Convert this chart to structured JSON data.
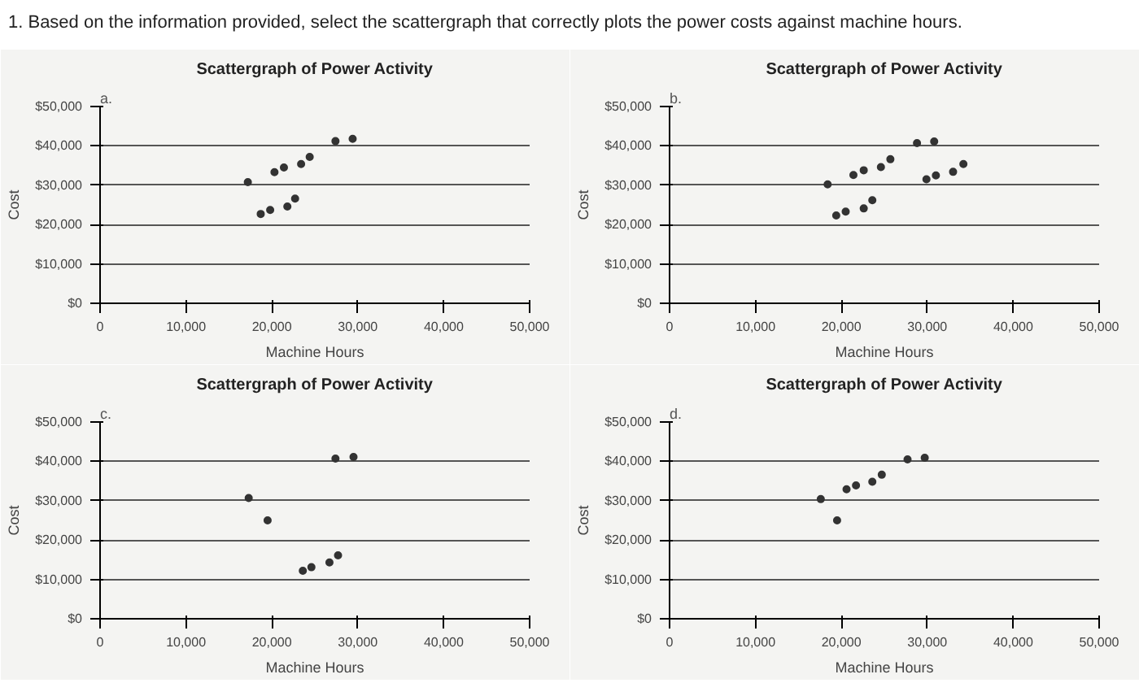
{
  "chart_data": [
    {
      "type": "other",
      "title": "1. Based on the information provided, select the scattergraph that correctly plots the power costs against machine hours."
    },
    {
      "type": "scatter",
      "subtitle": "a.",
      "title": "Scattergraph of Power Activity",
      "xlabel": "Machine Hours",
      "ylabel": "Cost",
      "grid": "y",
      "marker": "circle",
      "xlim": [
        0,
        50000
      ],
      "ylim": [
        0,
        50000
      ],
      "xticks": [
        0,
        {
          "value": 10000,
          "label": "10,000"
        },
        {
          "value": 20000,
          "label": "20,000"
        },
        {
          "value": 30000,
          "label": "30,000"
        },
        {
          "value": 40000,
          "label": "40,000"
        },
        {
          "value": 50000,
          "label": "50,000"
        }
      ],
      "yticks": [
        {
          "value": 0,
          "label": "$0"
        },
        {
          "value": 10000,
          "label": "$10,000"
        },
        {
          "value": 20000,
          "label": "$20,000"
        },
        {
          "value": 30000,
          "label": "$30,000"
        },
        {
          "value": 40000,
          "label": "$40,000"
        },
        {
          "value": 50000,
          "label": "$50,000"
        }
      ],
      "series": [
        {
          "color": "#333333",
          "x": [
            17200,
            18700,
            19800,
            20300,
            21400,
            21800,
            22700,
            23400,
            24400,
            27400,
            29400
          ],
          "values": [
            30800,
            22700,
            23700,
            33300,
            34500,
            24600,
            26600,
            35400,
            37200,
            41200,
            41800
          ]
        }
      ]
    },
    {
      "type": "scatter",
      "subtitle": "b.",
      "title": "Scattergraph of Power Activity",
      "xlabel": "Machine Hours",
      "ylabel": "Cost",
      "grid": "y",
      "marker": "circle",
      "xlim": [
        0,
        50000
      ],
      "ylim": [
        0,
        50000
      ],
      "xticks": [
        0,
        {
          "value": 10000,
          "label": "10,000"
        },
        {
          "value": 20000,
          "label": "20,000"
        },
        {
          "value": 30000,
          "label": "30,000"
        },
        {
          "value": 40000,
          "label": "40,000"
        },
        {
          "value": 50000,
          "label": "50,000"
        }
      ],
      "yticks": [
        {
          "value": 0,
          "label": "$0"
        },
        {
          "value": 10000,
          "label": "$10,000"
        },
        {
          "value": 20000,
          "label": "$20,000"
        },
        {
          "value": 30000,
          "label": "$30,000"
        },
        {
          "value": 40000,
          "label": "$40,000"
        },
        {
          "value": 50000,
          "label": "$50,000"
        }
      ],
      "series": [
        {
          "color": "#333333",
          "x": [
            18400,
            19400,
            20500,
            21400,
            22600,
            22600,
            23600,
            24600,
            25700,
            28800,
            30800,
            29900,
            31000,
            33000,
            34200
          ],
          "values": [
            30200,
            22300,
            23300,
            32600,
            33800,
            24100,
            26200,
            34600,
            36600,
            40700,
            41100,
            31500,
            32500,
            33400,
            35400
          ]
        }
      ]
    },
    {
      "type": "scatter",
      "subtitle": "c.",
      "title": "Scattergraph of Power Activity",
      "xlabel": "Machine Hours",
      "ylabel": "Cost",
      "grid": "y",
      "marker": "circle",
      "xlim": [
        0,
        50000
      ],
      "ylim": [
        0,
        50000
      ],
      "xticks": [
        0,
        {
          "value": 10000,
          "label": "10,000"
        },
        {
          "value": 20000,
          "label": "20,000"
        },
        {
          "value": 30000,
          "label": "30,000"
        },
        {
          "value": 40000,
          "label": "40,000"
        },
        {
          "value": 50000,
          "label": "50,000"
        }
      ],
      "yticks": [
        {
          "value": 0,
          "label": "$0"
        },
        {
          "value": 10000,
          "label": "$10,000"
        },
        {
          "value": 20000,
          "label": "$20,000"
        },
        {
          "value": 30000,
          "label": "$30,000"
        },
        {
          "value": 40000,
          "label": "$40,000"
        },
        {
          "value": 50000,
          "label": "$50,000"
        }
      ],
      "series": [
        {
          "color": "#333333",
          "x": [
            17300,
            19500,
            23600,
            24600,
            26700,
            27700,
            27400,
            29500
          ],
          "values": [
            30700,
            25000,
            12200,
            13100,
            14300,
            16100,
            40700,
            41100
          ]
        }
      ]
    },
    {
      "type": "scatter",
      "subtitle": "d.",
      "title": "Scattergraph of Power Activity",
      "xlabel": "Machine Hours",
      "ylabel": "Cost",
      "grid": "y",
      "marker": "circle",
      "xlim": [
        0,
        50000
      ],
      "ylim": [
        0,
        50000
      ],
      "xticks": [
        0,
        {
          "value": 10000,
          "label": "10,000"
        },
        {
          "value": 20000,
          "label": "20,000"
        },
        {
          "value": 30000,
          "label": "30,000"
        },
        {
          "value": 40000,
          "label": "40,000"
        },
        {
          "value": 50000,
          "label": "50,000"
        }
      ],
      "yticks": [
        {
          "value": 0,
          "label": "$0"
        },
        {
          "value": 10000,
          "label": "$10,000"
        },
        {
          "value": 20000,
          "label": "$20,000"
        },
        {
          "value": 30000,
          "label": "$30,000"
        },
        {
          "value": 40000,
          "label": "$40,000"
        },
        {
          "value": 50000,
          "label": "$50,000"
        }
      ],
      "series": [
        {
          "color": "#333333",
          "x": [
            17600,
            19500,
            20600,
            21700,
            23600,
            24700,
            27700,
            29700
          ],
          "values": [
            30400,
            25000,
            32900,
            33900,
            34800,
            36600,
            40500,
            40900
          ]
        }
      ]
    }
  ]
}
